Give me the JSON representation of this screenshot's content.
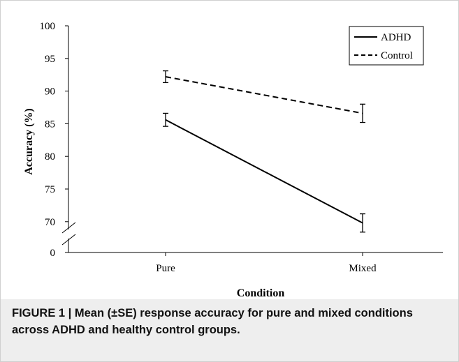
{
  "caption": "FIGURE 1 | Mean (±SE) response accuracy for pure and mixed conditions across ADHD and healthy control groups.",
  "chart_data": {
    "type": "line",
    "categories": [
      "Pure",
      "Mixed"
    ],
    "xlabel": "Condition",
    "ylabel": "Accuracy (%)",
    "y_ticks": [
      "100",
      "95",
      "90",
      "85",
      "80",
      "75",
      "70",
      "0"
    ],
    "axis_break": "between 0 and 70 on the y axis",
    "ylim": [
      67,
      100
    ],
    "grid": false,
    "legend_position": "top-right",
    "series": [
      {
        "name": "ADHD",
        "style": "solid",
        "color": "#000000",
        "values": [
          85.6,
          69.8
        ],
        "se": [
          1.0,
          1.4
        ]
      },
      {
        "name": "Control",
        "style": "dashed",
        "color": "#000000",
        "values": [
          92.2,
          86.6
        ],
        "se": [
          0.9,
          1.4
        ]
      }
    ]
  }
}
